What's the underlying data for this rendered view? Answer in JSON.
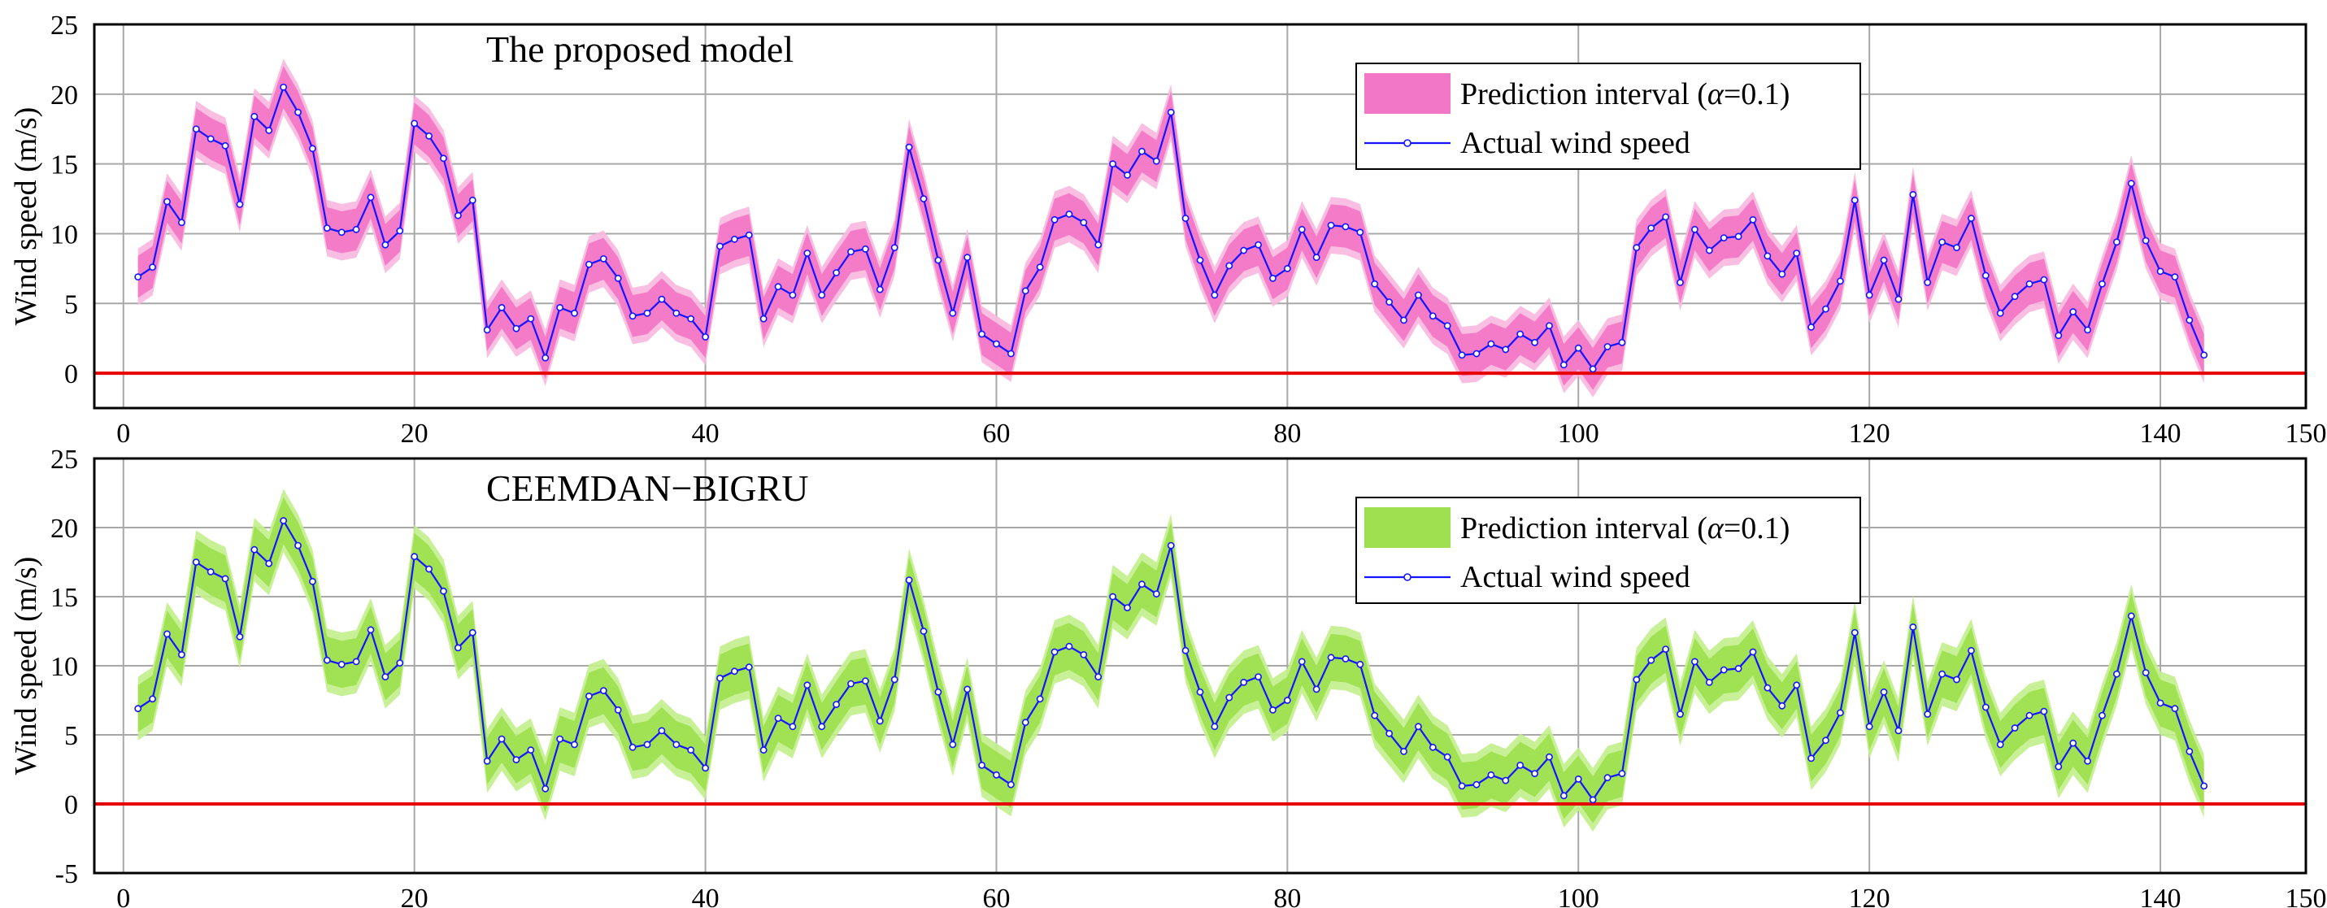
{
  "chart_data": [
    {
      "type": "line",
      "title": "The proposed model",
      "xlabel": "",
      "ylabel": "Wind speed (m/s)",
      "xlim": [
        -2,
        150
      ],
      "ylim": [
        -2.5,
        25
      ],
      "xticks": [
        "0",
        "20",
        "40",
        "60",
        "80",
        "100",
        "120",
        "140",
        "150"
      ],
      "yticks": [
        "0",
        "5",
        "10",
        "15",
        "20",
        "25"
      ],
      "grid": true,
      "legend_position": "top-right",
      "legend": [
        {
          "label_prefix": "Prediction interval (",
          "label_symbol": "α",
          "label_suffix": "=0.1)",
          "kind": "band"
        },
        {
          "label": "Actual wind speed",
          "kind": "line-marker"
        }
      ],
      "reference_line": {
        "y": 0,
        "color": "#e60000"
      },
      "colors": {
        "band": "#f277c6",
        "band_outer": "#f8b7df",
        "line": "#1414ff"
      },
      "interval": {
        "lower_offset": 1.5,
        "upper_offset": 1.5
      },
      "series": [
        {
          "name": "Actual wind speed",
          "x_start": 1,
          "values": [
            6.9,
            7.6,
            12.3,
            10.8,
            17.5,
            16.8,
            16.3,
            12.1,
            18.4,
            17.4,
            20.5,
            18.7,
            16.1,
            10.4,
            10.1,
            10.3,
            12.6,
            9.2,
            10.2,
            17.9,
            17.0,
            15.4,
            11.3,
            12.4,
            3.1,
            4.7,
            3.2,
            3.9,
            1.1,
            4.7,
            4.3,
            7.8,
            8.2,
            6.8,
            4.1,
            4.3,
            5.3,
            4.3,
            3.9,
            2.6,
            9.1,
            9.6,
            9.9,
            3.9,
            6.2,
            5.6,
            8.6,
            5.6,
            7.2,
            8.7,
            8.9,
            6.0,
            9.0,
            16.2,
            12.5,
            8.1,
            4.3,
            8.3,
            2.8,
            2.1,
            1.4,
            5.9,
            7.6,
            11.0,
            11.4,
            10.8,
            9.2,
            15.0,
            14.2,
            15.9,
            15.2,
            18.7,
            11.1,
            8.1,
            5.6,
            7.7,
            8.8,
            9.2,
            6.8,
            7.5,
            10.3,
            8.3,
            10.6,
            10.5,
            10.1,
            6.4,
            5.1,
            3.8,
            5.6,
            4.1,
            3.4,
            1.3,
            1.4,
            2.1,
            1.7,
            2.8,
            2.2,
            3.4,
            0.6,
            1.8,
            0.3,
            1.9,
            2.2,
            9.0,
            10.4,
            11.2,
            6.5,
            10.3,
            8.8,
            9.7,
            9.8,
            11.0,
            8.4,
            7.1,
            8.6,
            3.3,
            4.6,
            6.6,
            12.4,
            5.6,
            8.1,
            5.3,
            12.8,
            6.5,
            9.4,
            9.0,
            11.1,
            7.0,
            4.3,
            5.5,
            6.4,
            6.7,
            2.7,
            4.4,
            3.1,
            6.4,
            9.4,
            13.6,
            9.5,
            7.3,
            6.9,
            3.8,
            1.3
          ]
        }
      ]
    },
    {
      "type": "line",
      "title": "CEEMDAN−BIGRU",
      "xlabel": "",
      "ylabel": "Wind speed (m/s)",
      "xlim": [
        -2,
        150
      ],
      "ylim": [
        -5,
        25
      ],
      "xticks": [
        "0",
        "20",
        "40",
        "60",
        "80",
        "100",
        "120",
        "140",
        "150"
      ],
      "yticks": [
        "-5",
        "0",
        "5",
        "10",
        "15",
        "20",
        "25"
      ],
      "grid": true,
      "legend_position": "top-right",
      "legend": [
        {
          "label_prefix": "Prediction interval (",
          "label_symbol": "α",
          "label_suffix": "=0.1)",
          "kind": "band"
        },
        {
          "label": "Actual wind speed",
          "kind": "line-marker"
        }
      ],
      "reference_line": {
        "y": 0,
        "color": "#e60000"
      },
      "colors": {
        "band": "#9fe050",
        "band_outer": "#c2ee8c",
        "line": "#1414ff"
      },
      "interval": {
        "lower_offset": 1.7,
        "upper_offset": 1.7
      },
      "series": [
        {
          "name": "Actual wind speed",
          "x_start": 1,
          "values": [
            6.9,
            7.6,
            12.3,
            10.8,
            17.5,
            16.8,
            16.3,
            12.1,
            18.4,
            17.4,
            20.5,
            18.7,
            16.1,
            10.4,
            10.1,
            10.3,
            12.6,
            9.2,
            10.2,
            17.9,
            17.0,
            15.4,
            11.3,
            12.4,
            3.1,
            4.7,
            3.2,
            3.9,
            1.1,
            4.7,
            4.3,
            7.8,
            8.2,
            6.8,
            4.1,
            4.3,
            5.3,
            4.3,
            3.9,
            2.6,
            9.1,
            9.6,
            9.9,
            3.9,
            6.2,
            5.6,
            8.6,
            5.6,
            7.2,
            8.7,
            8.9,
            6.0,
            9.0,
            16.2,
            12.5,
            8.1,
            4.3,
            8.3,
            2.8,
            2.1,
            1.4,
            5.9,
            7.6,
            11.0,
            11.4,
            10.8,
            9.2,
            15.0,
            14.2,
            15.9,
            15.2,
            18.7,
            11.1,
            8.1,
            5.6,
            7.7,
            8.8,
            9.2,
            6.8,
            7.5,
            10.3,
            8.3,
            10.6,
            10.5,
            10.1,
            6.4,
            5.1,
            3.8,
            5.6,
            4.1,
            3.4,
            1.3,
            1.4,
            2.1,
            1.7,
            2.8,
            2.2,
            3.4,
            0.6,
            1.8,
            0.3,
            1.9,
            2.2,
            9.0,
            10.4,
            11.2,
            6.5,
            10.3,
            8.8,
            9.7,
            9.8,
            11.0,
            8.4,
            7.1,
            8.6,
            3.3,
            4.6,
            6.6,
            12.4,
            5.6,
            8.1,
            5.3,
            12.8,
            6.5,
            9.4,
            9.0,
            11.1,
            7.0,
            4.3,
            5.5,
            6.4,
            6.7,
            2.7,
            4.4,
            3.1,
            6.4,
            9.4,
            13.6,
            9.5,
            7.3,
            6.9,
            3.8,
            1.3
          ]
        }
      ]
    }
  ]
}
